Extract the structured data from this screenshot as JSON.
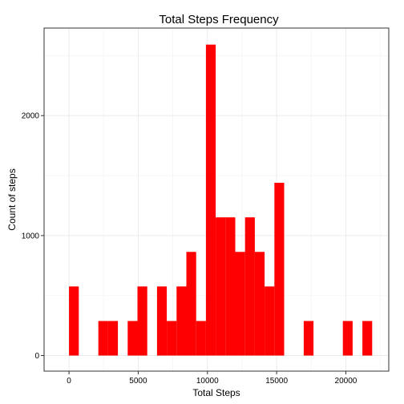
{
  "chart_data": {
    "type": "bar",
    "title": "Total Steps Frequency",
    "xlabel": "Total Steps",
    "ylabel": "Count of steps",
    "bar_color": "#ff0000",
    "grid_color": "#ebebeb",
    "border_color": "#333333",
    "xlim": [
      -1800,
      23100
    ],
    "ylim": [
      -130,
      2730
    ],
    "x_ticks": [
      0,
      5000,
      10000,
      15000,
      20000
    ],
    "x_tick_labels": [
      "0",
      "5000",
      "10000",
      "15000",
      "20000"
    ],
    "y_ticks": [
      0,
      1000,
      2000
    ],
    "y_tick_labels": [
      "0",
      "1000",
      "2000"
    ],
    "bin_width": 706.5,
    "bins": [
      {
        "start": 0,
        "count": 576
      },
      {
        "start": 2119.5,
        "count": 288
      },
      {
        "start": 2826,
        "count": 288
      },
      {
        "start": 4239,
        "count": 288
      },
      {
        "start": 4945.5,
        "count": 576
      },
      {
        "start": 6358.5,
        "count": 576
      },
      {
        "start": 7065,
        "count": 288
      },
      {
        "start": 7771.5,
        "count": 576
      },
      {
        "start": 8478,
        "count": 864
      },
      {
        "start": 9184.5,
        "count": 288
      },
      {
        "start": 9891,
        "count": 2592
      },
      {
        "start": 10597.5,
        "count": 1152
      },
      {
        "start": 11304,
        "count": 1152
      },
      {
        "start": 12010.5,
        "count": 864
      },
      {
        "start": 12717,
        "count": 1152
      },
      {
        "start": 13423.5,
        "count": 864
      },
      {
        "start": 14130,
        "count": 576
      },
      {
        "start": 14836.5,
        "count": 1440
      },
      {
        "start": 16956,
        "count": 288
      },
      {
        "start": 19782,
        "count": 288
      },
      {
        "start": 21195,
        "count": 288
      }
    ]
  }
}
